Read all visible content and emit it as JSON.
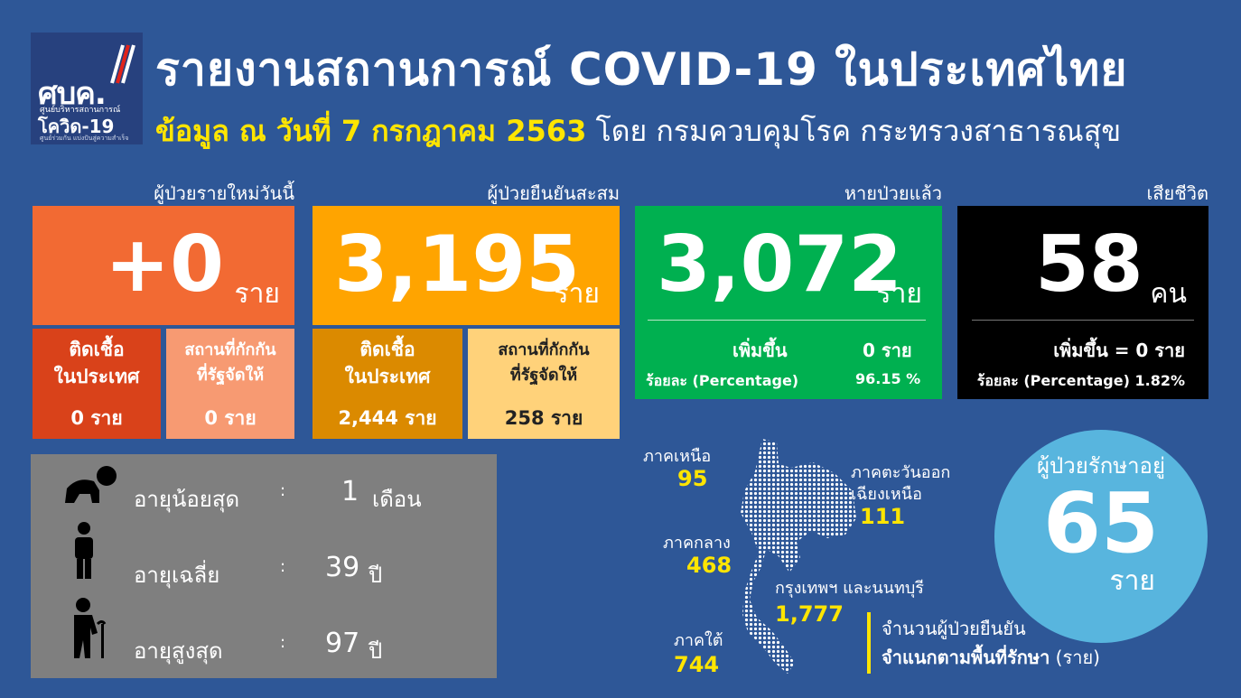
{
  "logo": {
    "abbr": "ศบค.",
    "line1": "ศูนย์บริหารสถานการณ์",
    "line2": "โควิด-19",
    "line3": "ศูนย์ร่วมกัน  แบ่งปันสู่ความสำเร็จ"
  },
  "header": {
    "title": "รายงานสถานการณ์ COVID-19 ในประเทศไทย",
    "date_highlight": "ข้อมูล ณ วันที่ 7 กรกฎาคม 2563",
    "source": "โดย กรมควบคุมโรค กระทรวงสาธารณสุข"
  },
  "new_cases": {
    "label": "ผู้ป่วยรายใหม่วันนี้",
    "value": "+0",
    "unit": "ราย",
    "local_label": "ติดเชื้อ\nในประเทศ",
    "local_value": "0 ราย",
    "quarantine_label": "สถานที่กักกัน\nที่รัฐจัดให้",
    "quarantine_value": "0 ราย"
  },
  "cumulative": {
    "label": "ผู้ป่วยยืนยันสะสม",
    "value": "3,195",
    "unit": "ราย",
    "local_label": "ติดเชื้อ\nในประเทศ",
    "local_value": "2,444 ราย",
    "quarantine_label": "สถานที่กักกัน\nที่รัฐจัดให้",
    "quarantine_value": "258 ราย"
  },
  "recovered": {
    "label": "หายป่วยแล้ว",
    "value": "3,072",
    "unit": "ราย",
    "increase_label": "เพิ่มขึ้น",
    "increase_value": "0 ราย",
    "percent_label": "ร้อยละ (Percentage)",
    "percent_value": "96.15 %"
  },
  "deaths": {
    "label": "เสียชีวิต",
    "value": "58",
    "unit": "คน",
    "increase_text": "เพิ่มขึ้น = 0 ราย",
    "percent_text": "ร้อยละ (Percentage) 1.82%"
  },
  "ages": [
    {
      "label": "อายุน้อยสุด",
      "sep": ":",
      "value": "1",
      "unit": "เดือน",
      "icon": "baby-icon"
    },
    {
      "label": "อายุเฉลี่ย",
      "sep": ":",
      "value": "39",
      "unit": "ปี",
      "icon": "adult-icon"
    },
    {
      "label": "อายุสูงสุด",
      "sep": ":",
      "value": "97",
      "unit": "ปี",
      "icon": "elderly-icon"
    }
  ],
  "regions": {
    "north": {
      "name": "ภาคเหนือ",
      "value": "95"
    },
    "northeast": {
      "name1": "ภาคตะวันออก",
      "name2": "เฉียงเหนือ",
      "value": "111"
    },
    "central": {
      "name": "ภาคกลาง",
      "value": "468"
    },
    "bangkok": {
      "name": "กรุงเทพฯ และนนทบุรี",
      "value": "1,777"
    },
    "south": {
      "name": "ภาคใต้",
      "value": "744"
    }
  },
  "treatment": {
    "label": "ผู้ป่วยรักษาอยู่",
    "value": "65",
    "unit": "ราย"
  },
  "legend": {
    "line1": "จำนวนผู้ป่วยยืนยัน",
    "line2_bold": "จำแนกตามพื้นที่รักษา",
    "line2_rest": " (ราย)"
  },
  "colors": {
    "orange": "#f26a33",
    "amber": "#ffa400",
    "green": "#00b050",
    "black": "#000000",
    "yellow": "#ffe500",
    "bg": "#2e5797"
  }
}
